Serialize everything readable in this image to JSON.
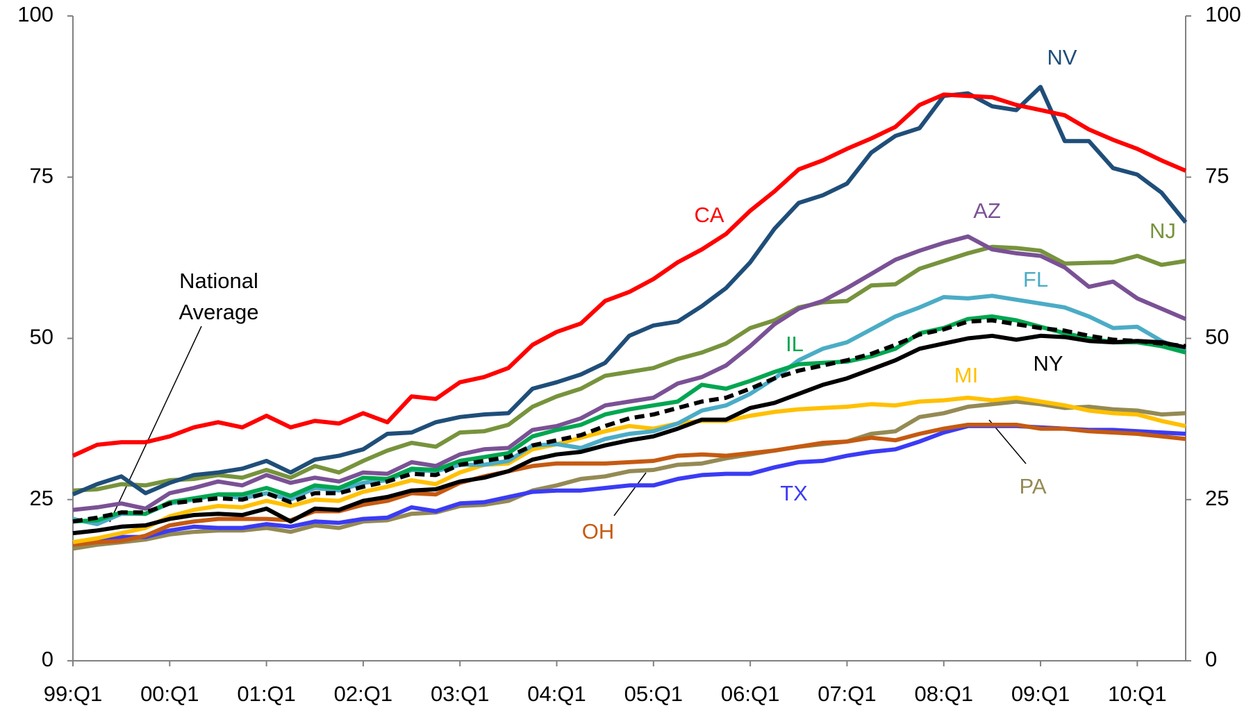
{
  "chart_data": {
    "type": "line",
    "categories": [
      "99:Q1",
      null,
      null,
      null,
      "00:Q1",
      null,
      null,
      null,
      "01:Q1",
      null,
      null,
      null,
      "02:Q1",
      null,
      null,
      null,
      "03:Q1",
      null,
      null,
      null,
      "04:Q1",
      null,
      null,
      null,
      "05:Q1",
      null,
      null,
      null,
      "06:Q1",
      null,
      null,
      null,
      "07:Q1",
      null,
      null,
      null,
      "08:Q1",
      null,
      null,
      null,
      "09:Q1",
      null,
      null,
      null,
      "10:Q1",
      null,
      null
    ],
    "ylim": [
      0,
      100
    ],
    "yticks": [
      0,
      25,
      50,
      75,
      100
    ],
    "y2lim": [
      0,
      100
    ],
    "y2ticks": [
      0,
      25,
      50,
      75,
      100
    ],
    "grid": false,
    "series": [
      {
        "name": "PA",
        "color": "#948a54",
        "values": [
          17.4,
          18,
          18.4,
          18.8,
          19.6,
          20,
          20.2,
          20.2,
          20.6,
          20,
          21,
          20.6,
          21.6,
          21.8,
          22.8,
          23,
          24,
          24.2,
          24.8,
          26.4,
          27.2,
          28.2,
          28.6,
          29.4,
          29.6,
          30.4,
          30.6,
          31.4,
          32,
          32.6,
          33.2,
          33.6,
          34,
          35.2,
          35.6,
          37.8,
          38.4,
          39.4,
          39.8,
          40.2,
          39.8,
          39.2,
          39.4,
          39,
          38.8,
          38.2,
          38.4
        ]
      },
      {
        "name": "TX",
        "color": "#3b3bf5",
        "values": [
          18.2,
          18.8,
          19.2,
          19.2,
          20.2,
          20.8,
          20.6,
          20.6,
          21.2,
          20.8,
          21.6,
          21.4,
          22,
          22.2,
          23.8,
          23.2,
          24.4,
          24.6,
          25.4,
          26.2,
          26.4,
          26.4,
          26.8,
          27.2,
          27.2,
          28.2,
          28.8,
          29,
          29,
          30,
          30.8,
          31,
          31.8,
          32.4,
          32.8,
          34,
          35.4,
          36.4,
          36.4,
          36.4,
          36.2,
          36,
          35.8,
          35.8,
          35.6,
          35.4,
          35.2
        ]
      },
      {
        "name": "OH",
        "color": "#c55a11",
        "values": [
          18,
          18.4,
          18.6,
          19.4,
          21,
          21.6,
          22,
          22,
          22,
          21.8,
          23.2,
          23.2,
          24.2,
          24.8,
          26,
          25.8,
          27.6,
          28.6,
          29.4,
          30.2,
          30.6,
          30.6,
          30.6,
          30.8,
          31,
          31.8,
          32,
          31.8,
          32.2,
          32.6,
          33.2,
          33.8,
          34,
          34.6,
          34.2,
          35.2,
          36,
          36.6,
          36.6,
          36.6,
          36,
          36,
          35.6,
          35.4,
          35.2,
          34.8,
          34.4
        ]
      },
      {
        "name": "MI",
        "color": "#ffc000",
        "values": [
          18.4,
          19,
          19.8,
          20.6,
          22.4,
          23.4,
          24,
          23.8,
          24.8,
          24,
          25,
          24.8,
          26.2,
          27,
          28,
          27.4,
          29.2,
          30.4,
          30.6,
          32.8,
          33.6,
          34.6,
          35.6,
          36.4,
          36,
          36.8,
          37.2,
          37.2,
          38,
          38.6,
          39,
          39.2,
          39.4,
          39.8,
          39.6,
          40.2,
          40.4,
          40.8,
          40.4,
          40.8,
          40.2,
          39.6,
          38.8,
          38.4,
          38.2,
          37.2,
          36.4
        ]
      },
      {
        "name": "FL",
        "color": "#4bacc6",
        "values": [
          22,
          21.2,
          22.8,
          22.8,
          24.4,
          25,
          25.8,
          25.2,
          26,
          25,
          26.8,
          26.4,
          27.6,
          28,
          29.6,
          29.4,
          30.4,
          30.4,
          31,
          33.4,
          33.6,
          33,
          34.4,
          35.2,
          35.6,
          36.8,
          38.8,
          39.6,
          41.4,
          43.8,
          46.6,
          48.4,
          49.4,
          51.4,
          53.4,
          54.8,
          56.4,
          56.2,
          56.6,
          56,
          55.4,
          54.8,
          53.4,
          51.6,
          51.8,
          49.6,
          48
        ]
      },
      {
        "name": "IL",
        "color": "#00a650",
        "values": [
          21.6,
          21.8,
          23,
          22.8,
          24.6,
          25.2,
          25.8,
          25.8,
          26.8,
          25.6,
          27.2,
          26.8,
          28.4,
          28.2,
          29.8,
          29.6,
          31,
          31.6,
          32.2,
          34.8,
          35.8,
          36.6,
          38.2,
          39,
          39.6,
          40.2,
          42.8,
          42.2,
          43.4,
          44.8,
          46,
          46.2,
          46.4,
          47.2,
          48.4,
          50.8,
          51.6,
          53,
          53.4,
          52.8,
          51.8,
          50.8,
          50,
          49.4,
          49.4,
          48.8,
          47.8
        ]
      },
      {
        "name": "NJ",
        "color": "#77933c",
        "values": [
          26.4,
          26.6,
          27.4,
          27.2,
          28,
          28.2,
          28.8,
          28.4,
          29.6,
          28.4,
          30.2,
          29.2,
          31,
          32.6,
          33.8,
          33.2,
          35.4,
          35.6,
          36.6,
          39.4,
          41,
          42.2,
          44.2,
          44.8,
          45.4,
          46.8,
          47.8,
          49.2,
          51.6,
          52.8,
          54.8,
          55.6,
          55.8,
          58.2,
          58.4,
          60.8,
          62,
          63.2,
          64.2,
          64,
          63.6,
          61.6,
          61.7,
          61.8,
          62.8,
          61.4,
          62
        ]
      },
      {
        "name": "AZ",
        "color": "#7a5195",
        "values": [
          23.4,
          23.8,
          24.4,
          23.6,
          26,
          26.8,
          27.8,
          27.2,
          28.8,
          27.6,
          28.4,
          27.8,
          29.2,
          29,
          30.8,
          30.2,
          32,
          32.8,
          33,
          35.8,
          36.4,
          37.6,
          39.6,
          40.2,
          40.8,
          43,
          44,
          45.8,
          48.8,
          52.2,
          54.6,
          55.8,
          57.8,
          60,
          62.2,
          63.6,
          64.8,
          65.8,
          63.8,
          63.2,
          62.8,
          61,
          58,
          58.8,
          56.2,
          54.6,
          53
        ]
      },
      {
        "name": "NV",
        "color": "#1f4e79",
        "values": [
          25.8,
          27.4,
          28.6,
          26,
          27.6,
          28.8,
          29.2,
          29.8,
          31,
          29.2,
          31.2,
          31.8,
          32.8,
          35.2,
          35.4,
          37,
          37.8,
          38.2,
          38.4,
          42.2,
          43.2,
          44.4,
          46.2,
          50.4,
          52,
          52.6,
          55,
          57.8,
          61.8,
          67,
          71,
          72.2,
          74,
          78.8,
          81.4,
          82.6,
          87.6,
          88,
          86,
          85.4,
          89,
          80.6,
          80.6,
          76.4,
          75.4,
          72.6,
          68
        ]
      },
      {
        "name": "CA",
        "color": "#ff0000",
        "values": [
          31.8,
          33.5,
          33.9,
          33.9,
          34.8,
          36.2,
          37,
          36.2,
          38,
          36.2,
          37.2,
          36.8,
          38.4,
          37,
          41,
          40.6,
          43.2,
          44,
          45.4,
          49,
          51,
          52.3,
          55.8,
          57.2,
          59.2,
          61.8,
          63.8,
          66.2,
          69.8,
          72.8,
          76.2,
          77.6,
          79.4,
          81,
          82.8,
          86.2,
          87.8,
          87.6,
          87.4,
          86.2,
          85.4,
          84.6,
          82.4,
          80.8,
          79.4,
          77.6,
          76
        ]
      },
      {
        "name": "NY",
        "color": "#000000",
        "values": [
          19.8,
          20.2,
          20.8,
          21,
          22,
          22.6,
          22.8,
          22.6,
          23.6,
          21.6,
          23.6,
          23.4,
          24.8,
          25.4,
          26.4,
          26.6,
          27.8,
          28.4,
          29.4,
          31.2,
          32,
          32.4,
          33.4,
          34.2,
          34.8,
          36,
          37.4,
          37.4,
          39.2,
          40,
          41.4,
          42.8,
          43.8,
          45.2,
          46.6,
          48.4,
          49.2,
          50,
          50.4,
          49.8,
          50.4,
          50.2,
          49.6,
          49.4,
          49.6,
          49.4,
          48.6
        ]
      },
      {
        "name": "National Average",
        "color": "#000000",
        "dashed": true,
        "values": [
          21.6,
          22.2,
          23,
          23,
          24.4,
          24.8,
          25.2,
          25,
          26,
          24.6,
          26,
          26,
          27,
          27.8,
          29,
          28.8,
          30.4,
          31,
          31.6,
          33.4,
          34.2,
          35,
          36.4,
          37.6,
          38.2,
          39.2,
          40.2,
          40.8,
          42.2,
          43.8,
          45,
          45.8,
          46.6,
          47.6,
          49,
          50.6,
          51.4,
          52.6,
          52.8,
          52.2,
          51.6,
          51.2,
          50.4,
          49.8,
          49.6,
          49.2,
          48.8
        ]
      }
    ]
  }
}
